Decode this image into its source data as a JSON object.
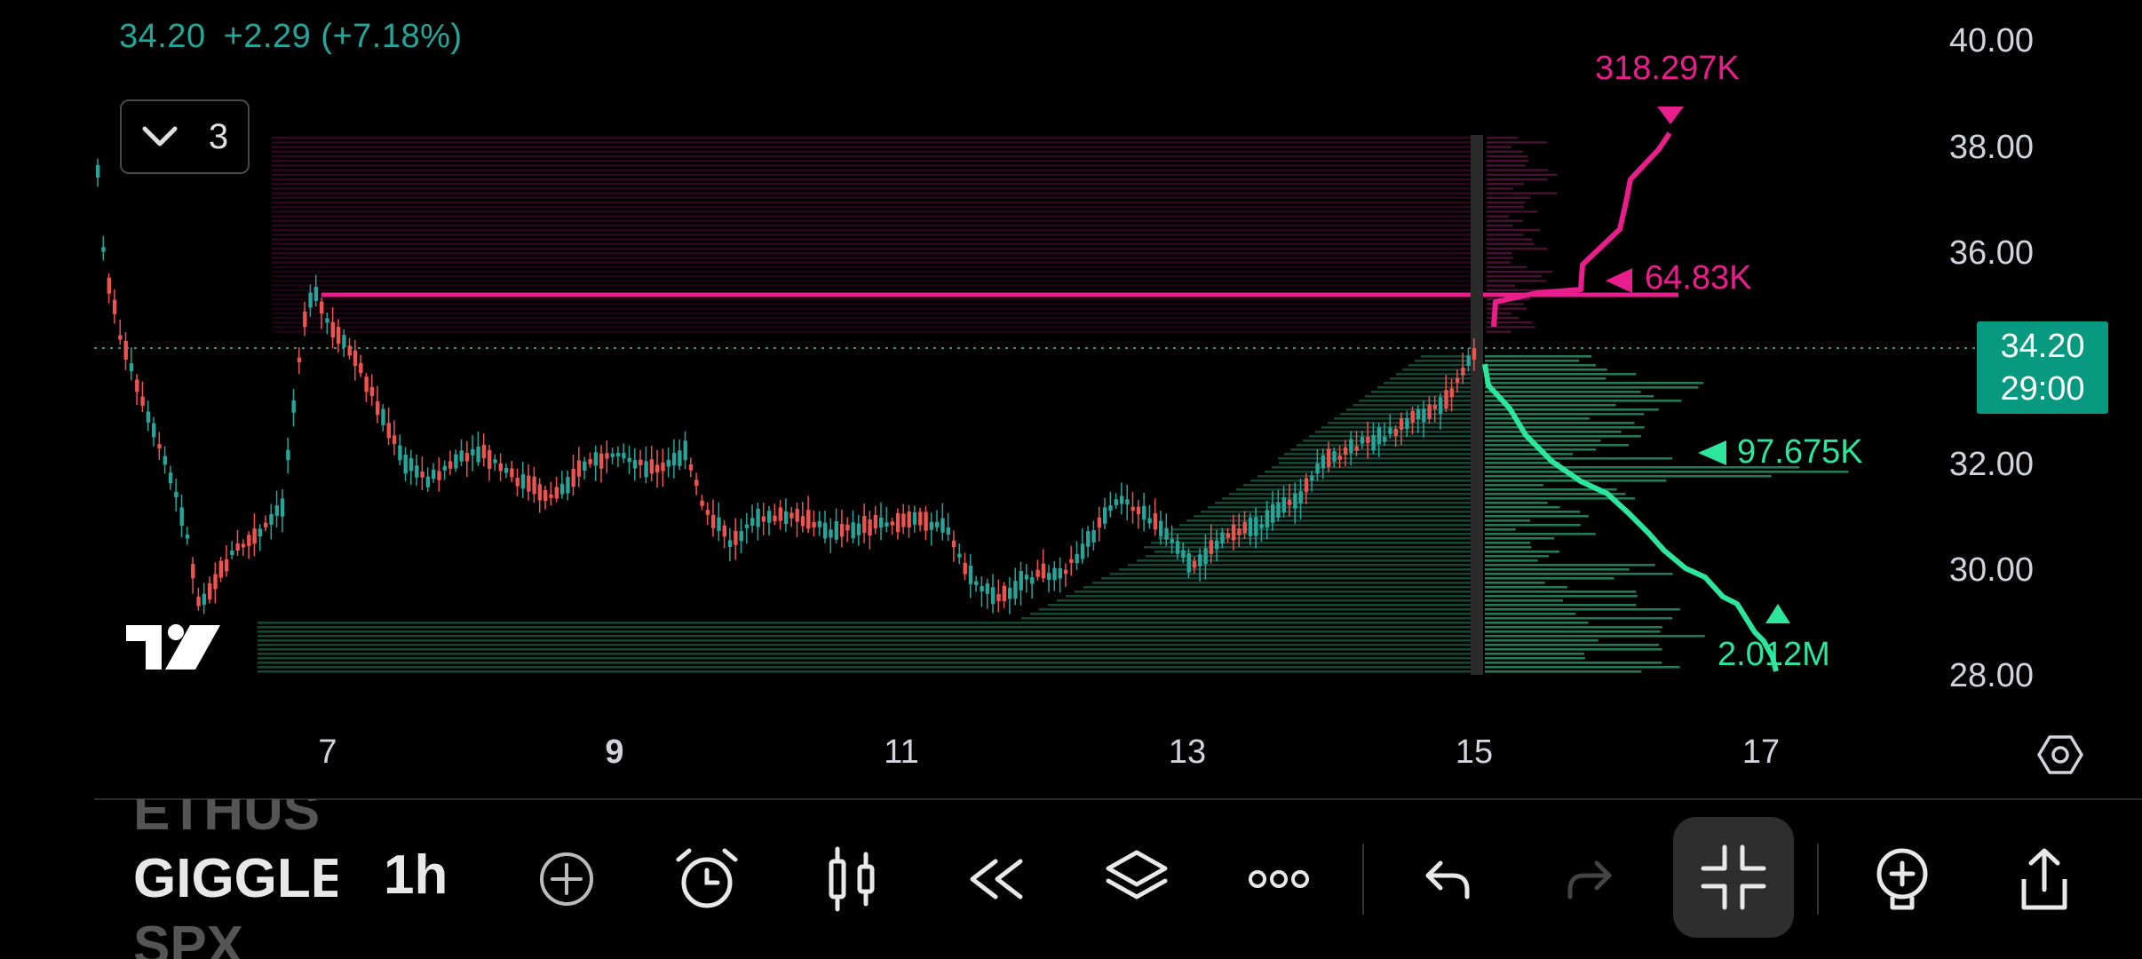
{
  "header": {
    "last_price": "34.20",
    "change": "+2.29 (+7.18%)"
  },
  "layout_button": {
    "count": "3"
  },
  "price_axis": {
    "labels": [
      "40.00",
      "38.00",
      "36.00",
      "32.00",
      "30.00",
      "28.00"
    ]
  },
  "time_axis": {
    "labels": [
      "7",
      "9",
      "11",
      "13",
      "15",
      "17"
    ],
    "bold_label": "9"
  },
  "current_price_tag": {
    "price": "34.20",
    "countdown": "29:00"
  },
  "volume_profile_labels": {
    "top_total": "318.297K",
    "sell_level": "64.83K",
    "buy_level": "97.675K",
    "bottom_total": "2.012M"
  },
  "toolbar": {
    "symbols": [
      "ETHUS",
      "GIGGLE",
      "SPX"
    ],
    "active_symbol": "GIGGLE",
    "interval": "1h",
    "icons": [
      "add-icon",
      "alarm-clock-icon",
      "candles-icon",
      "replay-icon",
      "layers-icon",
      "more-icon",
      "undo-icon",
      "redo-icon",
      "collapse-icon",
      "add-indicator-icon",
      "share-icon"
    ]
  },
  "colors": {
    "up": "#26a69a",
    "down": "#ef5350",
    "magenta": "#e91e8c",
    "green": "#2ee59d",
    "badge": "#089981"
  }
}
